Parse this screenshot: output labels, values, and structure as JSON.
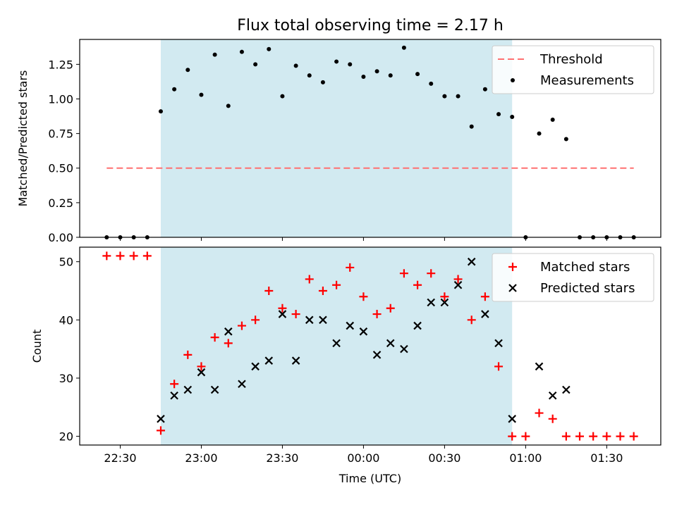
{
  "title": "Flux total observing time = 2.17 h",
  "colors": {
    "shade": "#add8e6",
    "threshold": "#ff7070",
    "matched": "#ff0000",
    "predicted": "#000000",
    "measurement": "#000000"
  },
  "chart_data": [
    {
      "type": "scatter",
      "ylabel": "Matched/Predicted stars",
      "ylim": [
        0,
        1.43
      ],
      "yticks": [
        0.0,
        0.25,
        0.5,
        0.75,
        1.0,
        1.25
      ],
      "ytick_labels": [
        "0.00",
        "0.25",
        "0.50",
        "0.75",
        "1.00",
        "1.25"
      ],
      "legend_position": "top-right",
      "shaded_span": {
        "x_start": "22:45",
        "x_end": "00:55"
      },
      "threshold": {
        "name": "Threshold",
        "y": 0.5,
        "x_start": "22:25",
        "x_end": "01:40",
        "style": "dashed"
      },
      "series": [
        {
          "name": "Measurements",
          "x": [
            "22:25",
            "22:30",
            "22:35",
            "22:40",
            "22:45",
            "22:50",
            "22:55",
            "23:00",
            "23:05",
            "23:10",
            "23:15",
            "23:20",
            "23:25",
            "23:30",
            "23:35",
            "23:40",
            "23:45",
            "23:50",
            "23:55",
            "00:00",
            "00:05",
            "00:10",
            "00:15",
            "00:20",
            "00:25",
            "00:30",
            "00:35",
            "00:40",
            "00:45",
            "00:50",
            "00:55",
            "01:00",
            "01:05",
            "01:10",
            "01:15",
            "01:20",
            "01:25",
            "01:30",
            "01:35",
            "01:40"
          ],
          "y": [
            0.0,
            0.0,
            0.0,
            0.0,
            0.91,
            1.07,
            1.21,
            1.03,
            1.32,
            0.95,
            1.34,
            1.25,
            1.36,
            1.02,
            1.24,
            1.17,
            1.12,
            1.27,
            1.25,
            1.16,
            1.2,
            1.17,
            1.37,
            1.18,
            1.11,
            1.02,
            1.02,
            0.8,
            1.07,
            0.89,
            0.87,
            0.0,
            0.75,
            0.85,
            0.71,
            0.0,
            0.0,
            0.0,
            0.0,
            0.0
          ]
        }
      ]
    },
    {
      "type": "scatter",
      "xlabel": "Time (UTC)",
      "ylabel": "Count",
      "ylim": [
        18.5,
        52.5
      ],
      "yticks": [
        20,
        30,
        40,
        50
      ],
      "ytick_labels": [
        "20",
        "30",
        "40",
        "50"
      ],
      "xticks": [
        "22:30",
        "23:00",
        "23:30",
        "00:00",
        "00:30",
        "01:00",
        "01:30"
      ],
      "xtick_labels": [
        "22:30",
        "23:00",
        "23:30",
        "00:00",
        "00:30",
        "01:00",
        "01:30"
      ],
      "legend_position": "top-right",
      "shaded_span": {
        "x_start": "22:45",
        "x_end": "00:55"
      },
      "series": [
        {
          "name": "Matched stars",
          "x": [
            "22:25",
            "22:30",
            "22:35",
            "22:40",
            "22:45",
            "22:50",
            "22:55",
            "23:00",
            "23:05",
            "23:10",
            "23:15",
            "23:20",
            "23:25",
            "23:30",
            "23:35",
            "23:40",
            "23:45",
            "23:50",
            "23:55",
            "00:00",
            "00:05",
            "00:10",
            "00:15",
            "00:20",
            "00:25",
            "00:30",
            "00:35",
            "00:40",
            "00:45",
            "00:50",
            "00:55",
            "01:00",
            "01:05",
            "01:10",
            "01:15",
            "01:20",
            "01:25",
            "01:30",
            "01:35",
            "01:40"
          ],
          "y": [
            51,
            51,
            51,
            51,
            21,
            29,
            34,
            32,
            37,
            36,
            39,
            40,
            45,
            42,
            41,
            47,
            45,
            46,
            49,
            44,
            41,
            42,
            48,
            46,
            48,
            44,
            47,
            40,
            44,
            32,
            20,
            20,
            24,
            23,
            20,
            20,
            20,
            20,
            20,
            20
          ]
        },
        {
          "name": "Predicted stars",
          "x": [
            "22:45",
            "22:50",
            "22:55",
            "23:00",
            "23:05",
            "23:10",
            "23:15",
            "23:20",
            "23:25",
            "23:30",
            "23:35",
            "23:40",
            "23:45",
            "23:50",
            "23:55",
            "00:00",
            "00:05",
            "00:10",
            "00:15",
            "00:20",
            "00:25",
            "00:30",
            "00:35",
            "00:40",
            "00:45",
            "00:50",
            "00:55",
            "01:05",
            "01:10",
            "01:15"
          ],
          "y": [
            23,
            27,
            28,
            31,
            28,
            38,
            29,
            32,
            33,
            41,
            33,
            40,
            40,
            36,
            39,
            38,
            34,
            36,
            35,
            39,
            43,
            43,
            46,
            50,
            41,
            36,
            23,
            32,
            27,
            28
          ]
        }
      ]
    }
  ]
}
